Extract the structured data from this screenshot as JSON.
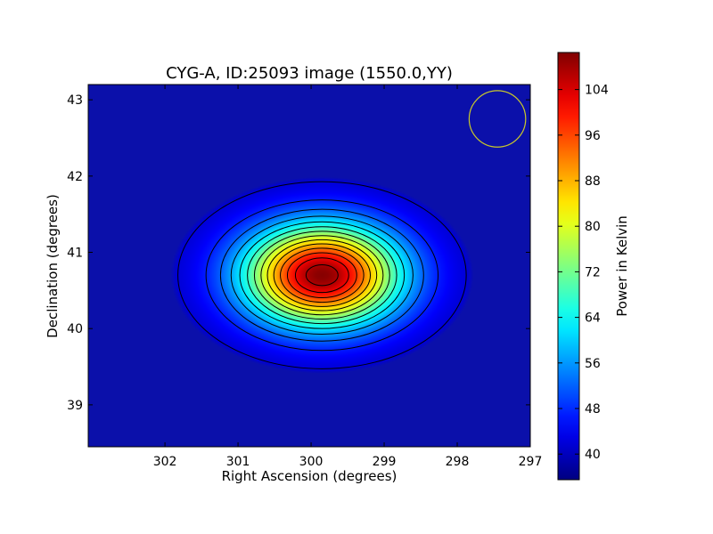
{
  "chart_data": {
    "type": "heatmap",
    "title": "CYG-A, ID:25093 image (1550.0,YY)",
    "xlabel": "Right Ascension (degrees)",
    "ylabel": "Declination (degrees)",
    "xlim": [
      303.05,
      297.0
    ],
    "ylim": [
      38.45,
      43.2
    ],
    "x_ticks": [
      302,
      301,
      300,
      299,
      298,
      297
    ],
    "y_ticks": [
      39,
      40,
      41,
      42,
      43
    ],
    "colorbar": {
      "label": "Power in Kelvin",
      "colormap": "jet",
      "range": [
        35.5,
        110.5
      ],
      "ticks": [
        40,
        48,
        56,
        64,
        72,
        80,
        88,
        96,
        104
      ]
    },
    "source": {
      "center_ra": 299.85,
      "center_dec": 40.7,
      "peak_kelvin": 110,
      "background_kelvin": 40,
      "sigma_ra_deg": 0.74,
      "sigma_dec_deg": 0.46
    },
    "contour_levels": [
      42,
      47,
      52,
      57,
      62,
      67,
      72,
      77,
      82,
      87,
      92,
      97,
      102,
      107
    ],
    "beam_circle": {
      "center_ra": 297.45,
      "center_dec": 42.75,
      "radius_dec_deg": 0.37,
      "color": "#c9c82a"
    },
    "grid": false,
    "legend": "none"
  }
}
